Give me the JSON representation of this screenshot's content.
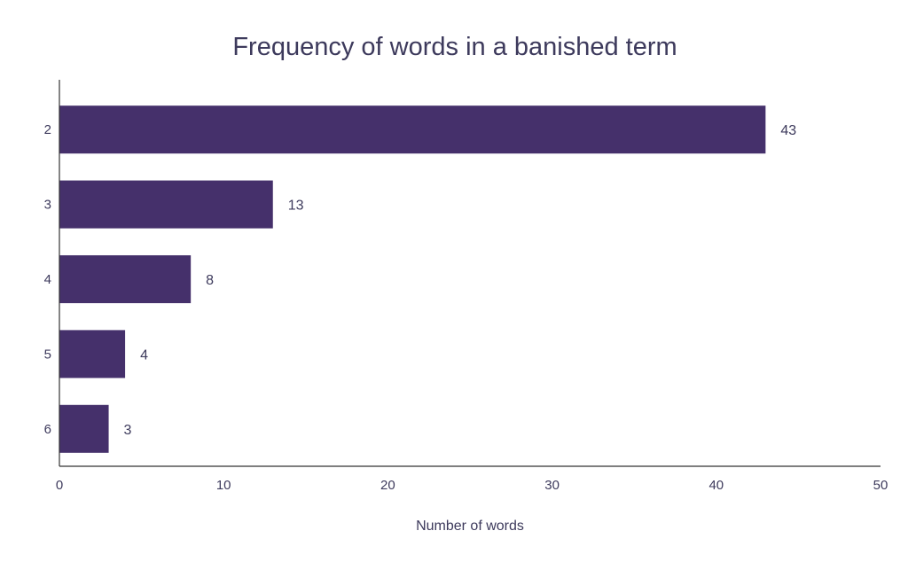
{
  "chart_data": {
    "type": "bar",
    "orientation": "horizontal",
    "title": "Frequency of words in a banished term",
    "xlabel": "Number of words",
    "ylabel": "",
    "categories": [
      "2",
      "3",
      "4",
      "5",
      "6"
    ],
    "values": [
      43,
      13,
      8,
      4,
      3
    ],
    "xlim": [
      0,
      50
    ],
    "xticks": [
      "0",
      "10",
      "20",
      "30",
      "40",
      "50"
    ],
    "grid": false,
    "legend": "none",
    "colors": {
      "bar": "#45306b",
      "text": "#3d3a5c",
      "axis": "#333333"
    }
  }
}
